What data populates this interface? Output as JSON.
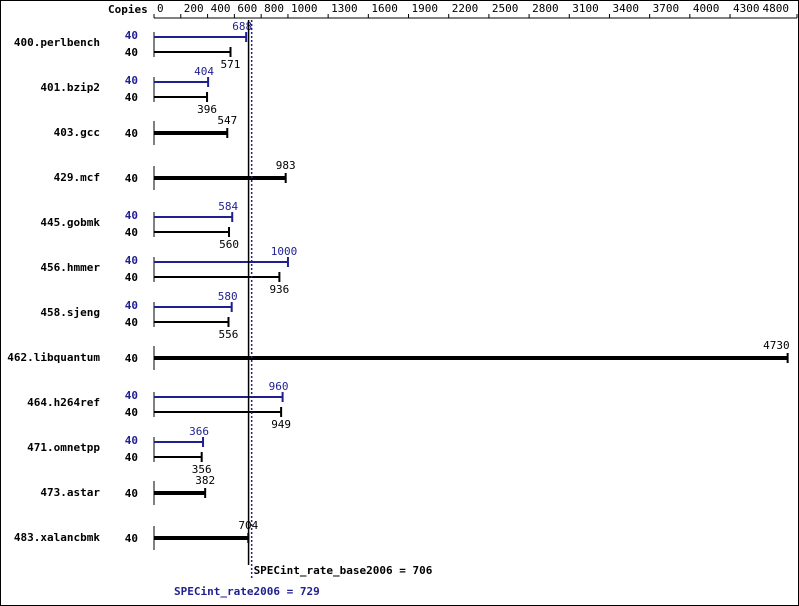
{
  "chart_data": {
    "type": "bar",
    "orientation": "horizontal",
    "copies_label": "Copies",
    "categories": [
      "400.perlbench",
      "401.bzip2",
      "403.gcc",
      "429.mcf",
      "445.gobmk",
      "456.hmmer",
      "458.sjeng",
      "462.libquantum",
      "464.h264ref",
      "471.omnetpp",
      "473.astar",
      "483.xalancbmk"
    ],
    "series": [
      {
        "color": "#1f1f8f",
        "copies": [
          40,
          40,
          null,
          null,
          40,
          40,
          40,
          null,
          40,
          40,
          null,
          null
        ],
        "values": [
          688,
          404,
          null,
          null,
          584,
          1000,
          580,
          null,
          960,
          366,
          null,
          null
        ]
      },
      {
        "color": "#000000",
        "copies": [
          40,
          40,
          40,
          40,
          40,
          40,
          40,
          40,
          40,
          40,
          40,
          40
        ],
        "values": [
          571,
          396,
          547,
          983,
          560,
          936,
          556,
          4730,
          949,
          356,
          382,
          704
        ]
      }
    ],
    "xlim": [
      0,
      4800
    ],
    "xticks": [
      0,
      200,
      400,
      600,
      800,
      1000,
      1300,
      1600,
      1900,
      2200,
      2500,
      2800,
      3100,
      3400,
      3700,
      4000,
      4300,
      4800
    ],
    "reference_lines": [
      {
        "text": "SPECint_rate_base2006 = 706",
        "value": 706,
        "color": "#000000",
        "style": "solid"
      },
      {
        "text": "SPECint_rate2006 = 729",
        "value": 729,
        "color": "#1f1f8f",
        "style": "dotted"
      }
    ]
  }
}
